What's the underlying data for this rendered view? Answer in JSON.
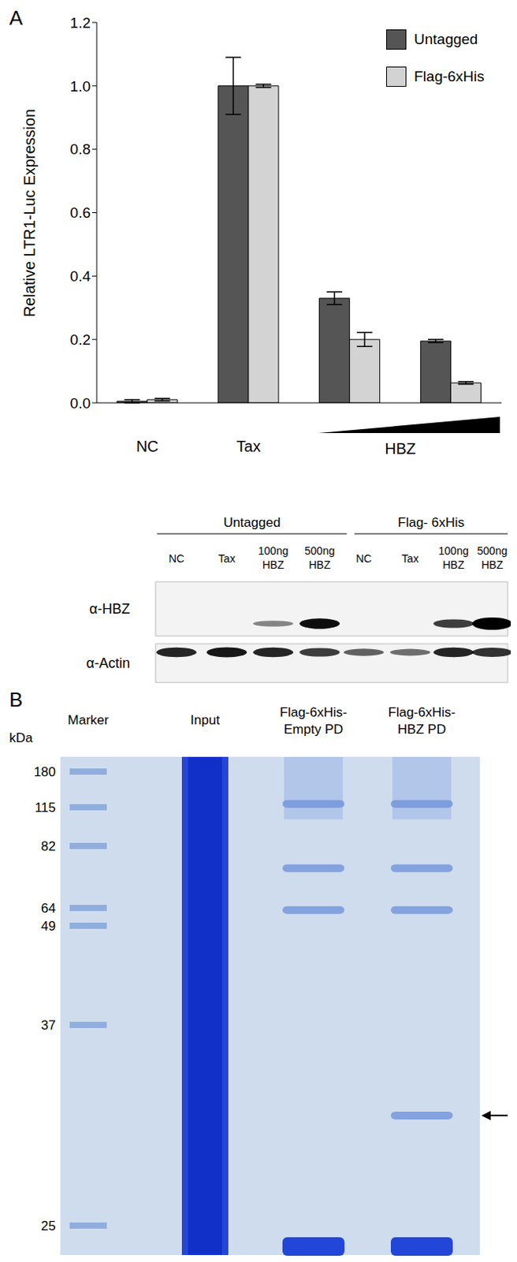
{
  "chart_data": {
    "type": "bar",
    "panel": "A",
    "y_label": "Relative LTR1-Luc Expression",
    "categories": [
      "NC",
      "Tax",
      null,
      null
    ],
    "annotations": [
      "HBZ"
    ],
    "series": [
      {
        "name": "Untagged",
        "color": "#555555",
        "values": [
          0.005,
          1.0,
          0.33,
          0.195
        ],
        "errors": [
          0.005,
          0.09,
          0.02,
          0.005
        ]
      },
      {
        "name": "Flag-6xHis",
        "color": "#d3d3d3",
        "values": [
          0.01,
          1.0,
          0.2,
          0.063
        ],
        "errors": [
          0.004,
          0.005,
          0.022,
          0.004
        ]
      }
    ],
    "ylim": [
      0,
      1.2
    ],
    "yticks": [
      {
        "value": 0,
        "label": "0.0"
      },
      0.2,
      0.4,
      0.6,
      0.8,
      {
        "value": 1,
        "label": "1.0"
      },
      1.2
    ],
    "legend": "upper right",
    "grid": false
  },
  "blot": {
    "groups": [
      {
        "label": "Untagged",
        "lanes": [
          "NC",
          "Tax",
          "100ng HBZ",
          "500ng HBZ"
        ]
      },
      {
        "label": "Flag- 6xHis",
        "lanes": [
          "NC",
          "Tax",
          "100ng HBZ",
          "500ng HBZ"
        ]
      }
    ],
    "rows": [
      {
        "label": "α-HBZ",
        "signal": [
          0,
          0,
          0.3,
          0.8,
          0,
          0,
          0.6,
          1
        ]
      },
      {
        "label": "α-Actin",
        "signal": [
          0.7,
          0.75,
          0.7,
          0.6,
          0.45,
          0.4,
          0.7,
          0.65
        ]
      }
    ]
  },
  "gel": {
    "panel": "B",
    "unit": "kDa",
    "marker_kda": [
      180,
      115,
      82,
      64,
      49,
      37,
      25
    ],
    "lanes": [
      [
        "Marker"
      ],
      [
        "Input"
      ],
      [
        "Flag-6xHis-",
        "Empty PD"
      ],
      [
        "Flag-6xHis-",
        "HBZ PD"
      ]
    ],
    "bands_kda": [
      [],
      [],
      [
        120,
        75,
        62,
        24
      ],
      [
        120,
        75,
        62,
        31,
        24
      ]
    ],
    "arrow_kda": 31
  }
}
